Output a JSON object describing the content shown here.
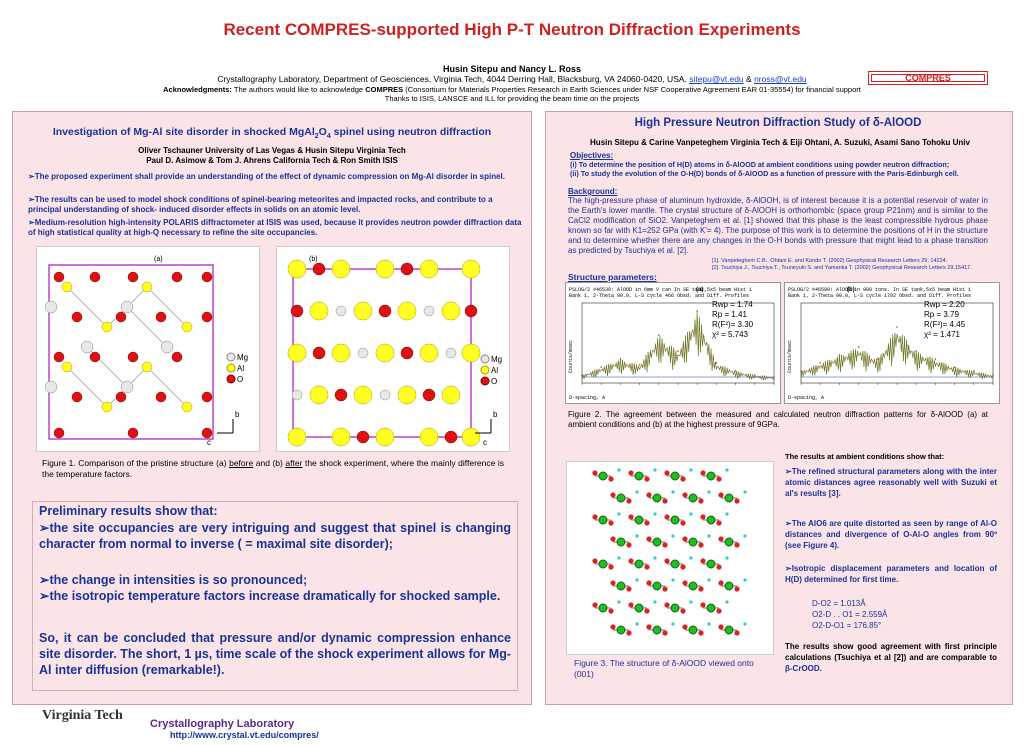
{
  "title": "Recent COMPRES-supported High P-T Neutron Diffraction Experiments",
  "authors": "Husin Sitepu and Nancy L. Ross",
  "affiliation": "Crystallography Laboratory, Department of Geosciences, Virginia Tech, 4044 Derring Hall, Blacksburg, VA 24060-0420, USA.",
  "email1": "sitepu@vt.edu",
  "amp": "&",
  "email2": "nross@vt.edu",
  "ack_label": "Acknowledgments:",
  "ack_text1": "The authors would like to acknowledge",
  "ack_compres": "COMPRES",
  "ack_text2": "(Consortium for Materials Properties Research in Earth Sciences under NSF Cooperative Agreement EAR 01-35554) for financial support",
  "ack_text3": "Thanks to ISIS, LANSCE and ILL for providing the beam time on the projects",
  "compres_logo": "COMPRES",
  "left": {
    "title": "Investigation of Mg-Al site disorder in shocked MgAl",
    "title_sub1": "2",
    "title_o": "O",
    "title_sub2": "4",
    "title_end": " spinel using neutron diffraction",
    "author_line1": "Oliver Tschauner   University of Las Vegas  &  Husin Sitepu  Virginia Tech",
    "author_line2": "Paul D. Asimow & Tom J. Ahrens  California Tech  &  Ron Smith  ISIS",
    "bullets": [
      "➢The proposed experiment shall provide an understanding of the effect of dynamic   compression on Mg-Al disorder in spinel.",
      "➢The results can be used to model shock conditions of spinel-bearing meteorites  and impacted rocks, and contribute to a principal understanding of shock- induced disorder effects in solids on an atomic level.",
      "➢Medium-resolution high-intensity POLARIS diffractometer at ISIS was used, because it provides neutron powder diffraction data of high statistical quality at high-Q necessary to refine the site occupancies."
    ],
    "fig_a": "(a)",
    "fig_b": "(b)",
    "legend": [
      "Mg",
      "Al",
      "O"
    ],
    "axis_b": "b",
    "axis_c": "c",
    "fig1_caption_pre": "Figure 1.  Comparison  of  the  pristine  structure  (a)  ",
    "fig1_before": "before",
    "fig1_mid": "  and  (b)  ",
    "fig1_after": "after",
    "fig1_end": "  the  shock experiment, where the mainly difference is the temperature factors.",
    "prelim_title": "Preliminary results show that:",
    "prelim_items": [
      "➢the site occupancies are very intriguing and suggest that spinel is changing character from normal to inverse ( = maximal site disorder);",
      "➢the change in intensities is so pronounced;",
      "➢the isotropic temperature factors increase dramatically for shocked sample."
    ],
    "conclusion": "So, it can be concluded that pressure and/or dynamic compression enhance site disorder. The short, 1 µs, time scale of the shock experiment allows for Mg-Al inter diffusion (remarkable!)."
  },
  "right": {
    "title": "High Pressure Neutron Diffraction Study of δ-AlOOD",
    "authors": "Husin Sitepu & Carine Vanpeteghem Virginia Tech  &  Eiji Ohtani, A. Suzuki, Asami Sano  Tohoku Univ",
    "objectives_label": "Objectives:",
    "objectives": [
      "(i)  To determine the position of H(D) atoms in δ-AlOOD at ambient conditions using powder neutron diffraction;",
      "(ii) To study the evolution of the O-H(D) bonds of δ-AlOOD as a function of pressure with the Paris-Edinburgh cell."
    ],
    "background_label": "Background:",
    "background": "The high-pressure phase of aluminum hydroxide, δ-AlOOH, is of interest because it is a potential reservoir of water in the Earth's lower mantle.  The crystal structure of δ-AlOOH is orthorhombic (space group P21nm) and is similar to the CaCl2 modification of SiO2. Vanpeteghem et al. [1] showed that this phase is the least compressible hydrous phase known so far with K1=252 GPa (with K'= 4). The purpose of this work is to determine the positions of H in the structure and to determine whether there are any changes in the O-H bonds with pressure that might lead to a phase transition as predicted by Tsuchiya et al. [2].",
    "ref1": "[1]. Vanpeteghem C.B., Ohtani E. and Kondo T. (2002) Geophysical Research Letters 29, 14224.",
    "ref2": "[2]. Tsuchiya J., Tsuchiya T., Tsuneyuki S. and Yamanka T. (2002) Geophysical Research Letters 29,15417.",
    "structure_label": "Structure parameters:",
    "chart_a_header": "PSLOG/2 #46539:  AlOOD in 6mm V can   In SE tank,5x5 beam Hist  1",
    "chart_a_header2": "Bank  1, 2-Theta   90.0, L-S cycle  466 Obsd. and Diff. Profiles",
    "chart_b_header": "PSLOG/2 #46590: AlOOD in 900 tons.    In SE tank,5x5 beam Hist  1",
    "chart_b_header2": "Bank  1, 2-Theta   90.0, L-S cycle 1792 Obsd. and Diff. Profiles",
    "chart_a_label": "(a)",
    "chart_b_label": "(b)",
    "stats_a": [
      "Rwp  = 1.74",
      "Rp    = 1.41",
      "R(F²)= 3.30",
      "χ² = 5.743"
    ],
    "stats_b": [
      "Rwp  = 2.20",
      "Rp    = 3.79",
      "R(F²)= 4.45",
      "χ² = 1.471"
    ],
    "x_label": "D-spacing, A",
    "y_label": "Counts/msec",
    "fig2_caption": "Figure  2.  The  agreement  between  the  measured  and  calculated  neutron  diffraction  patterns  for δ-AlOOD (a) at ambient conditions and (b) at the highest pressure of  9GPa.",
    "results_title": "The results at ambient conditions show that:",
    "results": [
      "➢The  refined  structural  parameters  along with the inter atomic distances agree reasonably  well  with  Suzuki  et  al's results [3].",
      "➢The AlO6 are quite distorted as seen by range of Al-O distances and divergence of O-Al-O angles from 90º (see Figure 4).",
      "➢Isotropic  displacement  parameters  and location of  H(D) determined for first time."
    ],
    "distances": [
      "D-O2 = 1.013Å",
      "O2-D . . O1 = 2.559Å",
      "O2-D-O1 = 176.85°"
    ],
    "fig3_caption": "Figure 3. The structure of δ-AlOOD viewed onto (001)",
    "final_text_pre": "The results show good agreement with first principle calculations (Tsuchiya et al [2]) and are comparable to ",
    "final_text_end": "β-CrOOD."
  },
  "footer": {
    "vt_logo": "Virginia Tech",
    "lab": "Crystallography Laboratory",
    "url": "http://www.crystal.vt.edu/compres/"
  },
  "chart_data": [
    {
      "type": "line",
      "title": "PSLOG/2 #46539:  AlOOD in 6mm V can   In SE tank,5x5 beam Hist  1",
      "xlabel": "D-spacing, A",
      "ylabel": "Counts/msec",
      "x": [
        0.6,
        0.8,
        1.0,
        1.2,
        1.4,
        1.6,
        1.8,
        2.0,
        2.2,
        2.4,
        2.6
      ],
      "series": [
        {
          "values": [
            0.8,
            1.6,
            2.4,
            1.8,
            4.8,
            3.2,
            7.2,
            2.0,
            1.2,
            0.8,
            0.6
          ]
        }
      ]
    },
    {
      "type": "line",
      "title": "PSLOG/2 #46590: AlOOD in 900 tons.    In SE tank,5x5 beam Hist  1",
      "xlabel": "D-spacing, A",
      "ylabel": "Counts/msec",
      "x": [
        0.6,
        0.8,
        1.0,
        1.2,
        1.4,
        1.6,
        1.8,
        2.0,
        2.2,
        2.4,
        2.6
      ],
      "series": [
        {
          "values": [
            1.2,
            2.0,
            2.8,
            3.6,
            2.4,
            5.6,
            3.2,
            2.4,
            1.6,
            1.2,
            0.8
          ]
        }
      ]
    }
  ]
}
